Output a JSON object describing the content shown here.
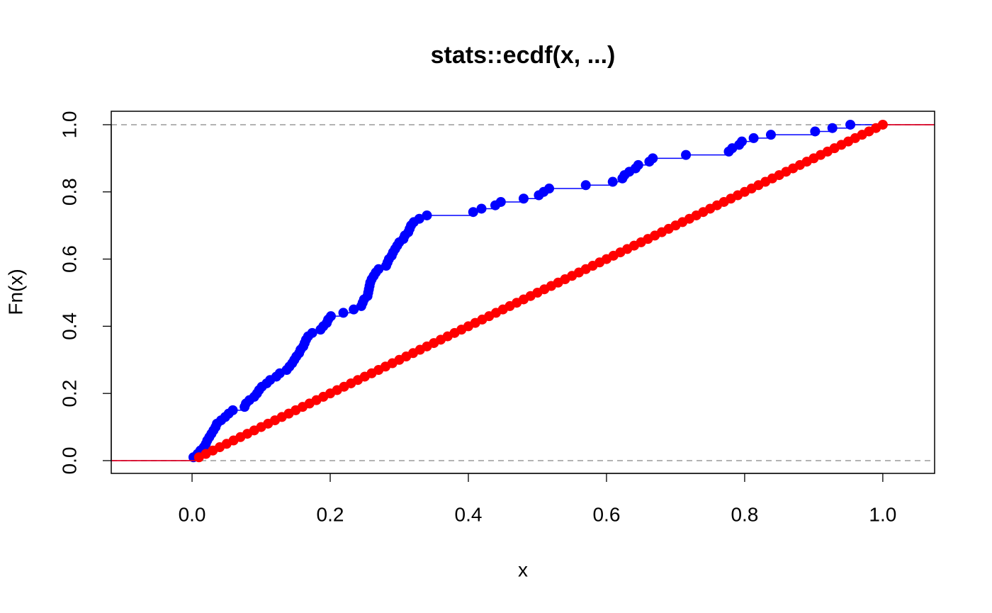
{
  "chart_data": {
    "type": "ecdf",
    "title": "stats::ecdf(x, ...)",
    "x_label": "x",
    "y_label": "Fn(x)",
    "xlim": [
      -0.117,
      1.075
    ],
    "ylim": [
      -0.038,
      1.04
    ],
    "xticks": [
      {
        "value": 0,
        "label": "0.0"
      },
      0.2,
      0.4,
      0.6,
      0.8,
      {
        "value": 1,
        "label": "1.0"
      }
    ],
    "yticks": [
      {
        "value": 0,
        "label": "0.0"
      },
      0.2,
      0.4,
      0.6,
      0.8,
      {
        "value": 1,
        "label": "1.0"
      }
    ],
    "reference_lines": [
      0,
      1
    ],
    "reference_color": "#b3b3b3",
    "series": [
      {
        "color": "#0000ff",
        "x": [
          0.002,
          0.008,
          0.012,
          0.017,
          0.02,
          0.022,
          0.025,
          0.028,
          0.031,
          0.034,
          0.036,
          0.042,
          0.048,
          0.053,
          0.059,
          0.076,
          0.078,
          0.083,
          0.09,
          0.094,
          0.097,
          0.101,
          0.108,
          0.113,
          0.122,
          0.127,
          0.137,
          0.141,
          0.145,
          0.148,
          0.151,
          0.155,
          0.157,
          0.161,
          0.163,
          0.165,
          0.168,
          0.174,
          0.186,
          0.19,
          0.195,
          0.197,
          0.201,
          0.219,
          0.234,
          0.245,
          0.247,
          0.249,
          0.254,
          0.255,
          0.256,
          0.257,
          0.258,
          0.26,
          0.263,
          0.266,
          0.27,
          0.281,
          0.283,
          0.285,
          0.289,
          0.291,
          0.294,
          0.297,
          0.3,
          0.306,
          0.308,
          0.313,
          0.315,
          0.317,
          0.321,
          0.329,
          0.34,
          0.407,
          0.419,
          0.439,
          0.447,
          0.48,
          0.502,
          0.509,
          0.517,
          0.57,
          0.609,
          0.623,
          0.626,
          0.633,
          0.642,
          0.646,
          0.662,
          0.667,
          0.715,
          0.777,
          0.782,
          0.792,
          0.796,
          0.813,
          0.838,
          0.902,
          0.927,
          0.953
        ],
        "y": [
          0.01,
          0.02,
          0.03,
          0.04,
          0.05,
          0.06,
          0.07,
          0.08,
          0.09,
          0.1,
          0.11,
          0.12,
          0.13,
          0.14,
          0.15,
          0.16,
          0.17,
          0.18,
          0.19,
          0.2,
          0.21,
          0.22,
          0.23,
          0.24,
          0.25,
          0.26,
          0.27,
          0.28,
          0.29,
          0.3,
          0.31,
          0.32,
          0.33,
          0.34,
          0.35,
          0.36,
          0.37,
          0.38,
          0.39,
          0.4,
          0.41,
          0.42,
          0.43,
          0.44,
          0.45,
          0.46,
          0.47,
          0.48,
          0.49,
          0.5,
          0.51,
          0.52,
          0.53,
          0.54,
          0.55,
          0.56,
          0.57,
          0.58,
          0.59,
          0.6,
          0.61,
          0.62,
          0.63,
          0.64,
          0.65,
          0.66,
          0.67,
          0.68,
          0.69,
          0.7,
          0.71,
          0.72,
          0.73,
          0.74,
          0.75,
          0.76,
          0.77,
          0.78,
          0.79,
          0.8,
          0.81,
          0.82,
          0.83,
          0.84,
          0.85,
          0.86,
          0.87,
          0.88,
          0.89,
          0.9,
          0.91,
          0.92,
          0.93,
          0.94,
          0.95,
          0.96,
          0.97,
          0.98,
          0.99,
          1.0
        ]
      },
      {
        "color": "#ff0000",
        "x": [
          0.01,
          0.02,
          0.03,
          0.04,
          0.05,
          0.06,
          0.07,
          0.08,
          0.09,
          0.1,
          0.11,
          0.12,
          0.13,
          0.14,
          0.15,
          0.16,
          0.17,
          0.18,
          0.19,
          0.2,
          0.21,
          0.22,
          0.23,
          0.24,
          0.25,
          0.26,
          0.27,
          0.28,
          0.29,
          0.3,
          0.31,
          0.32,
          0.33,
          0.34,
          0.35,
          0.36,
          0.37,
          0.38,
          0.39,
          0.4,
          0.41,
          0.42,
          0.43,
          0.44,
          0.45,
          0.46,
          0.47,
          0.48,
          0.49,
          0.5,
          0.51,
          0.52,
          0.53,
          0.54,
          0.55,
          0.56,
          0.57,
          0.58,
          0.59,
          0.6,
          0.61,
          0.62,
          0.63,
          0.64,
          0.65,
          0.66,
          0.67,
          0.68,
          0.69,
          0.7,
          0.71,
          0.72,
          0.73,
          0.74,
          0.75,
          0.76,
          0.77,
          0.78,
          0.79,
          0.8,
          0.81,
          0.82,
          0.83,
          0.84,
          0.85,
          0.86,
          0.87,
          0.88,
          0.89,
          0.9,
          0.91,
          0.92,
          0.93,
          0.94,
          0.95,
          0.96,
          0.97,
          0.98,
          0.99,
          1.0
        ],
        "y": [
          0.01,
          0.02,
          0.03,
          0.04,
          0.05,
          0.06,
          0.07,
          0.08,
          0.09,
          0.1,
          0.11,
          0.12,
          0.13,
          0.14,
          0.15,
          0.16,
          0.17,
          0.18,
          0.19,
          0.2,
          0.21,
          0.22,
          0.23,
          0.24,
          0.25,
          0.26,
          0.27,
          0.28,
          0.29,
          0.3,
          0.31,
          0.32,
          0.33,
          0.34,
          0.35,
          0.36,
          0.37,
          0.38,
          0.39,
          0.4,
          0.41,
          0.42,
          0.43,
          0.44,
          0.45,
          0.46,
          0.47,
          0.48,
          0.49,
          0.5,
          0.51,
          0.52,
          0.53,
          0.54,
          0.55,
          0.56,
          0.57,
          0.58,
          0.59,
          0.6,
          0.61,
          0.62,
          0.63,
          0.64,
          0.65,
          0.66,
          0.67,
          0.68,
          0.69,
          0.7,
          0.71,
          0.72,
          0.73,
          0.74,
          0.75,
          0.76,
          0.77,
          0.78,
          0.79,
          0.8,
          0.81,
          0.82,
          0.83,
          0.84,
          0.85,
          0.86,
          0.87,
          0.88,
          0.89,
          0.9,
          0.91,
          0.92,
          0.93,
          0.94,
          0.95,
          0.96,
          0.97,
          0.98,
          0.99,
          1.0
        ]
      }
    ]
  }
}
